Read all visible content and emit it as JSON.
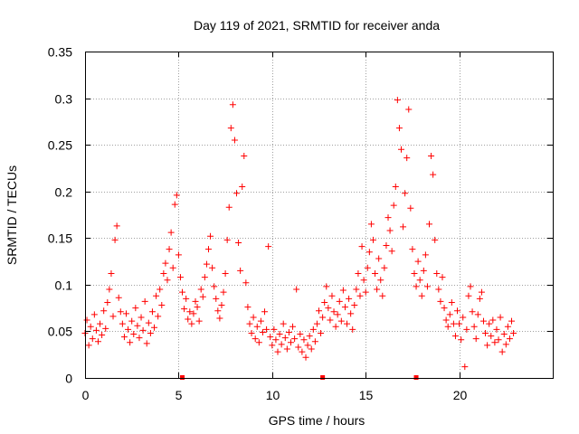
{
  "chart_data": {
    "type": "scatter",
    "title": "Day 119 of 2021, SRMTID for receiver anda",
    "xlabel": "GPS time / hours",
    "ylabel": "SRMTID / TECUs",
    "xlim": [
      0,
      25
    ],
    "ylim": [
      0,
      0.35
    ],
    "grid": true,
    "x_ticks": [
      0,
      5,
      10,
      15,
      20
    ],
    "x_tick_labels": [
      "0",
      "5",
      "10",
      "15",
      "20"
    ],
    "y_ticks": [
      0,
      0.05,
      0.1,
      0.15,
      0.2,
      0.25,
      0.3,
      0.35
    ],
    "y_tick_labels": [
      "0",
      "0.05",
      "0.1",
      "0.15",
      "0.2",
      "0.25",
      "0.3",
      "0.35"
    ],
    "marker": "plus",
    "color": "#ff0000",
    "series": [
      {
        "name": "SRMTID",
        "points": [
          [
            0.0,
            0.048
          ],
          [
            0.1,
            0.062
          ],
          [
            0.2,
            0.035
          ],
          [
            0.3,
            0.055
          ],
          [
            0.4,
            0.042
          ],
          [
            0.5,
            0.068
          ],
          [
            0.6,
            0.051
          ],
          [
            0.7,
            0.039
          ],
          [
            0.8,
            0.058
          ],
          [
            0.9,
            0.046
          ],
          [
            1.0,
            0.072
          ],
          [
            1.1,
            0.053
          ],
          [
            1.2,
            0.081
          ],
          [
            1.3,
            0.095
          ],
          [
            1.4,
            0.112
          ],
          [
            1.5,
            0.066
          ],
          [
            1.6,
            0.148
          ],
          [
            1.7,
            0.163
          ],
          [
            1.8,
            0.086
          ],
          [
            1.9,
            0.071
          ],
          [
            2.0,
            0.058
          ],
          [
            2.1,
            0.044
          ],
          [
            2.2,
            0.069
          ],
          [
            2.3,
            0.052
          ],
          [
            2.4,
            0.038
          ],
          [
            2.5,
            0.061
          ],
          [
            2.6,
            0.047
          ],
          [
            2.7,
            0.075
          ],
          [
            2.8,
            0.056
          ],
          [
            2.9,
            0.043
          ],
          [
            3.0,
            0.065
          ],
          [
            3.1,
            0.051
          ],
          [
            3.2,
            0.082
          ],
          [
            3.3,
            0.037
          ],
          [
            3.4,
            0.059
          ],
          [
            3.5,
            0.048
          ],
          [
            3.6,
            0.071
          ],
          [
            3.7,
            0.054
          ],
          [
            3.8,
            0.088
          ],
          [
            3.9,
            0.066
          ],
          [
            4.0,
            0.095
          ],
          [
            4.1,
            0.078
          ],
          [
            4.2,
            0.112
          ],
          [
            4.3,
            0.123
          ],
          [
            4.4,
            0.105
          ],
          [
            4.5,
            0.138
          ],
          [
            4.6,
            0.156
          ],
          [
            4.7,
            0.118
          ],
          [
            4.8,
            0.186
          ],
          [
            4.9,
            0.196
          ],
          [
            5.0,
            0.132
          ],
          [
            5.1,
            0.108
          ],
          [
            5.2,
            0.092
          ],
          [
            5.3,
            0.074
          ],
          [
            5.4,
            0.085
          ],
          [
            5.5,
            0.063
          ],
          [
            5.6,
            0.071
          ],
          [
            5.7,
            0.058
          ],
          [
            5.8,
            0.069
          ],
          [
            5.9,
            0.082
          ],
          [
            6.0,
            0.076
          ],
          [
            6.1,
            0.061
          ],
          [
            6.2,
            0.095
          ],
          [
            6.3,
            0.087
          ],
          [
            6.4,
            0.108
          ],
          [
            6.5,
            0.122
          ],
          [
            6.6,
            0.138
          ],
          [
            6.7,
            0.152
          ],
          [
            6.8,
            0.118
          ],
          [
            6.9,
            0.098
          ],
          [
            7.0,
            0.085
          ],
          [
            7.1,
            0.072
          ],
          [
            7.2,
            0.064
          ],
          [
            7.3,
            0.078
          ],
          [
            7.4,
            0.092
          ],
          [
            7.5,
            0.112
          ],
          [
            7.6,
            0.148
          ],
          [
            7.7,
            0.183
          ],
          [
            7.8,
            0.268
          ],
          [
            7.9,
            0.293
          ],
          [
            8.0,
            0.255
          ],
          [
            8.1,
            0.198
          ],
          [
            8.2,
            0.145
          ],
          [
            8.3,
            0.115
          ],
          [
            8.4,
            0.205
          ],
          [
            8.5,
            0.238
          ],
          [
            8.6,
            0.102
          ],
          [
            8.7,
            0.076
          ],
          [
            8.8,
            0.058
          ],
          [
            8.9,
            0.048
          ],
          [
            9.0,
            0.065
          ],
          [
            9.1,
            0.042
          ],
          [
            9.2,
            0.055
          ],
          [
            9.3,
            0.038
          ],
          [
            9.4,
            0.061
          ],
          [
            9.5,
            0.049
          ],
          [
            9.6,
            0.071
          ],
          [
            9.7,
            0.052
          ],
          [
            9.8,
            0.141
          ],
          [
            9.9,
            0.044
          ],
          [
            10.0,
            0.035
          ],
          [
            10.1,
            0.052
          ],
          [
            10.2,
            0.041
          ],
          [
            10.3,
            0.028
          ],
          [
            10.4,
            0.047
          ],
          [
            10.5,
            0.036
          ],
          [
            10.6,
            0.058
          ],
          [
            10.7,
            0.043
          ],
          [
            10.8,
            0.031
          ],
          [
            10.9,
            0.049
          ],
          [
            11.0,
            0.038
          ],
          [
            11.1,
            0.055
          ],
          [
            11.2,
            0.042
          ],
          [
            11.3,
            0.095
          ],
          [
            11.4,
            0.033
          ],
          [
            11.5,
            0.047
          ],
          [
            11.6,
            0.028
          ],
          [
            11.7,
            0.041
          ],
          [
            11.8,
            0.022
          ],
          [
            11.9,
            0.035
          ],
          [
            12.0,
            0.045
          ],
          [
            12.1,
            0.031
          ],
          [
            12.2,
            0.052
          ],
          [
            12.3,
            0.039
          ],
          [
            12.4,
            0.058
          ],
          [
            12.5,
            0.072
          ],
          [
            12.6,
            0.048
          ],
          [
            12.7,
            0.065
          ],
          [
            12.8,
            0.081
          ],
          [
            12.9,
            0.098
          ],
          [
            13.0,
            0.075
          ],
          [
            13.1,
            0.062
          ],
          [
            13.2,
            0.088
          ],
          [
            13.3,
            0.071
          ],
          [
            13.4,
            0.055
          ],
          [
            13.5,
            0.068
          ],
          [
            13.6,
            0.082
          ],
          [
            13.7,
            0.061
          ],
          [
            13.8,
            0.094
          ],
          [
            13.9,
            0.076
          ],
          [
            14.0,
            0.058
          ],
          [
            14.1,
            0.085
          ],
          [
            14.2,
            0.069
          ],
          [
            14.3,
            0.052
          ],
          [
            14.4,
            0.078
          ],
          [
            14.5,
            0.095
          ],
          [
            14.6,
            0.112
          ],
          [
            14.7,
            0.088
          ],
          [
            14.8,
            0.141
          ],
          [
            14.9,
            0.105
          ],
          [
            15.0,
            0.092
          ],
          [
            15.1,
            0.118
          ],
          [
            15.2,
            0.135
          ],
          [
            15.3,
            0.165
          ],
          [
            15.4,
            0.148
          ],
          [
            15.5,
            0.112
          ],
          [
            15.6,
            0.095
          ],
          [
            15.7,
            0.128
          ],
          [
            15.8,
            0.105
          ],
          [
            15.9,
            0.088
          ],
          [
            16.0,
            0.118
          ],
          [
            16.1,
            0.142
          ],
          [
            16.2,
            0.172
          ],
          [
            16.3,
            0.158
          ],
          [
            16.4,
            0.136
          ],
          [
            16.5,
            0.185
          ],
          [
            16.6,
            0.205
          ],
          [
            16.7,
            0.298
          ],
          [
            16.8,
            0.268
          ],
          [
            16.9,
            0.245
          ],
          [
            17.0,
            0.162
          ],
          [
            17.1,
            0.198
          ],
          [
            17.2,
            0.236
          ],
          [
            17.3,
            0.288
          ],
          [
            17.4,
            0.182
          ],
          [
            17.5,
            0.138
          ],
          [
            17.6,
            0.112
          ],
          [
            17.7,
            0.098
          ],
          [
            17.8,
            0.125
          ],
          [
            17.9,
            0.105
          ],
          [
            18.0,
            0.088
          ],
          [
            18.1,
            0.115
          ],
          [
            18.2,
            0.132
          ],
          [
            18.3,
            0.098
          ],
          [
            18.4,
            0.165
          ],
          [
            18.5,
            0.238
          ],
          [
            18.6,
            0.218
          ],
          [
            18.7,
            0.148
          ],
          [
            18.8,
            0.112
          ],
          [
            18.9,
            0.095
          ],
          [
            19.0,
            0.082
          ],
          [
            19.1,
            0.108
          ],
          [
            19.2,
            0.075
          ],
          [
            19.3,
            0.062
          ],
          [
            19.4,
            0.055
          ],
          [
            19.5,
            0.068
          ],
          [
            19.6,
            0.081
          ],
          [
            19.7,
            0.058
          ],
          [
            19.8,
            0.045
          ],
          [
            19.9,
            0.072
          ],
          [
            20.0,
            0.058
          ],
          [
            20.1,
            0.041
          ],
          [
            20.2,
            0.065
          ],
          [
            20.3,
            0.012
          ],
          [
            20.4,
            0.052
          ],
          [
            20.5,
            0.088
          ],
          [
            20.6,
            0.098
          ],
          [
            20.7,
            0.071
          ],
          [
            20.8,
            0.055
          ],
          [
            20.9,
            0.042
          ],
          [
            21.0,
            0.068
          ],
          [
            21.1,
            0.085
          ],
          [
            21.2,
            0.092
          ],
          [
            21.3,
            0.061
          ],
          [
            21.4,
            0.048
          ],
          [
            21.5,
            0.035
          ],
          [
            21.6,
            0.058
          ],
          [
            21.7,
            0.045
          ],
          [
            21.8,
            0.062
          ],
          [
            21.9,
            0.038
          ],
          [
            22.0,
            0.052
          ],
          [
            22.1,
            0.041
          ],
          [
            22.2,
            0.065
          ],
          [
            22.3,
            0.028
          ],
          [
            22.4,
            0.047
          ],
          [
            22.5,
            0.036
          ],
          [
            22.6,
            0.055
          ],
          [
            22.7,
            0.042
          ],
          [
            22.8,
            0.061
          ],
          [
            22.9,
            0.048
          ]
        ]
      }
    ],
    "gap_markers": [
      5.2,
      12.7,
      17.7
    ]
  }
}
